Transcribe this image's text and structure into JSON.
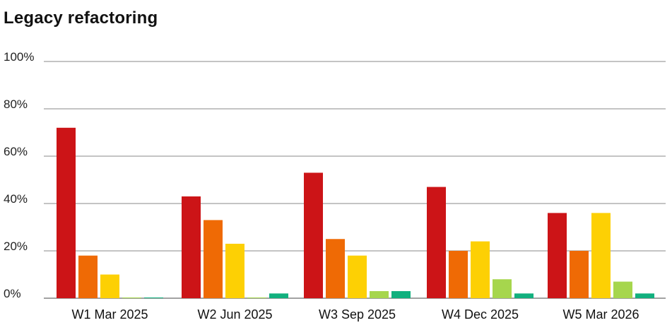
{
  "chart_data": {
    "type": "bar",
    "title": "Legacy refactoring",
    "xlabel": "",
    "ylabel": "",
    "ylim": [
      0,
      100
    ],
    "yticks": [
      "0%",
      "20%",
      "40%",
      "60%",
      "80%",
      "100%"
    ],
    "ytick_values": [
      0,
      20,
      40,
      60,
      80,
      100
    ],
    "grid": true,
    "legend": "none",
    "categories": [
      "W1 Mar 2025",
      "W2 Jun 2025",
      "W3 Sep 2025",
      "W4 Dec 2025",
      "W5 Mar 2026"
    ],
    "series": [
      {
        "color": "#cc1417",
        "values": [
          72,
          43,
          53,
          47,
          36
        ]
      },
      {
        "color": "#ef6a05",
        "values": [
          18,
          33,
          25,
          20,
          20
        ]
      },
      {
        "color": "#fdd004",
        "values": [
          10,
          23,
          18,
          24,
          36
        ]
      },
      {
        "color": "#a6d64d",
        "values": [
          0.3,
          0.3,
          3,
          8,
          7
        ]
      },
      {
        "color": "#11b07e",
        "values": [
          0.3,
          2,
          3,
          2,
          2
        ]
      }
    ]
  }
}
